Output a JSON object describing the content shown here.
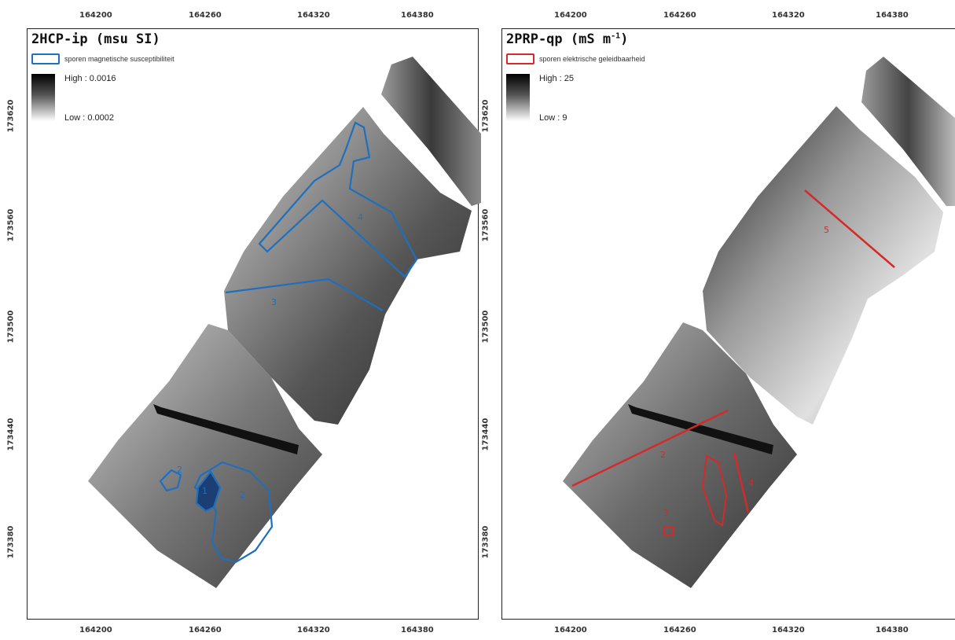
{
  "axis": {
    "x_ticks": [
      "164200",
      "164260",
      "164320",
      "164380"
    ],
    "y_ticks": [
      "173620",
      "173560",
      "173500",
      "173440",
      "173380"
    ]
  },
  "left_panel": {
    "title": "2HCP-ip (msu SI)",
    "legend_feature": "sporen magnetische susceptibiliteit",
    "legend_color": "#1f6fbf",
    "ramp_high": "High : 0.0016",
    "ramp_low": "Low : 0.0002",
    "feature_labels": [
      "4",
      "3",
      "2",
      "1",
      "2"
    ]
  },
  "right_panel": {
    "title_main": "2PRP-qp (mS m",
    "title_sup": "-1",
    "title_close": ")",
    "legend_feature": "sporen elektrische geleidbaarheid",
    "legend_color": "#d42a2a",
    "ramp_high": "High : 25",
    "ramp_low": "Low : 9",
    "feature_labels": [
      "5",
      "2",
      "4",
      "3"
    ]
  }
}
